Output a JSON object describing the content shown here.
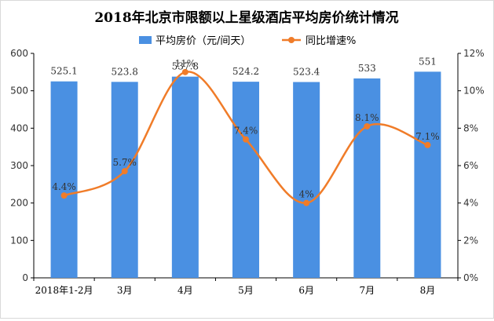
{
  "chart_data": {
    "type": "bar",
    "title": "2018年北京市限额以上星级酒店平均房价统计情况",
    "categories": [
      "2018年1-2月",
      "3月",
      "4月",
      "5月",
      "6月",
      "7月",
      "8月"
    ],
    "series": [
      {
        "name": "平均房价（元/间天）",
        "type": "bar",
        "axis": "left",
        "values": [
          525.1,
          523.8,
          537.8,
          524.2,
          523.4,
          533,
          551
        ],
        "labels": [
          "525.1",
          "523.8",
          "537.8",
          "524.2",
          "523.4",
          "533",
          "551"
        ],
        "color": "#4a90e2"
      },
      {
        "name": "同比增速%",
        "type": "line",
        "axis": "right",
        "smooth": true,
        "values": [
          4.4,
          5.7,
          11,
          7.4,
          4,
          8.1,
          7.1
        ],
        "labels": [
          "4.4%",
          "5.7%",
          "11%",
          "7.4%",
          "4%",
          "8.1%",
          "7.1%"
        ],
        "color": "#f07c29"
      }
    ],
    "ylim": [
      0,
      600
    ],
    "yticks": [
      "0",
      "100",
      "200",
      "300",
      "400",
      "500",
      "600"
    ],
    "y2lim": [
      0,
      12
    ],
    "y2ticks": [
      "0%",
      "2%",
      "4%",
      "6%",
      "8%",
      "10%",
      "12%"
    ],
    "grid": false,
    "legend_position": "top-center"
  }
}
